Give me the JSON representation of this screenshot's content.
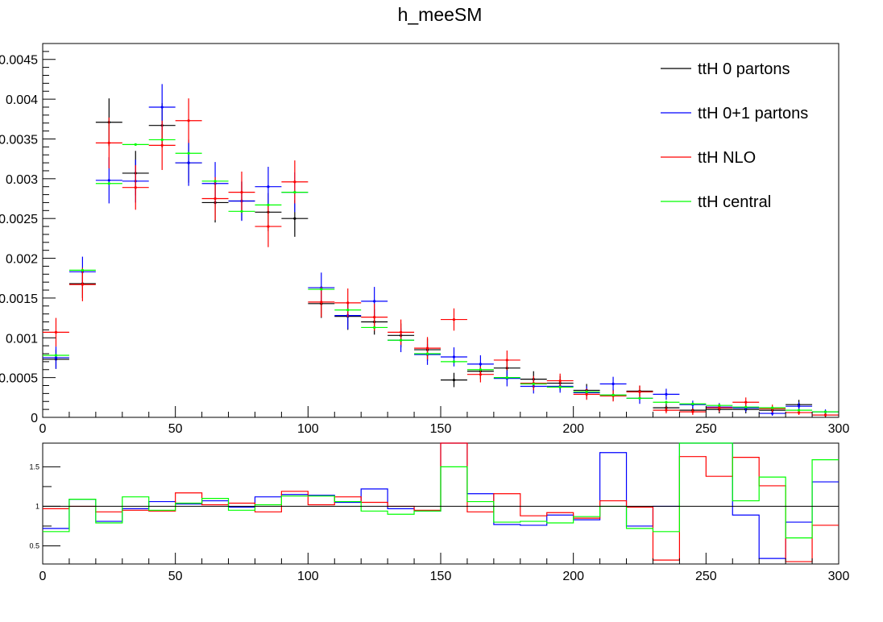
{
  "chart_data": [
    {
      "type": "scatter",
      "title": "h_meeSM",
      "xlabel": "",
      "ylabel": "",
      "xlim": [
        0,
        300
      ],
      "ylim": [
        0,
        0.0047
      ],
      "bin_width": 10,
      "x": [
        5,
        15,
        25,
        35,
        45,
        55,
        65,
        75,
        85,
        95,
        105,
        115,
        125,
        135,
        145,
        155,
        165,
        175,
        185,
        195,
        205,
        215,
        225,
        235,
        245,
        255,
        265,
        275,
        285,
        295
      ],
      "x_ticks": [
        "0",
        "50",
        "100",
        "150",
        "200",
        "250",
        "300"
      ],
      "y_ticks": [
        "0",
        "0.0005",
        "0.001",
        "0.0015",
        "0.002",
        "0.0025",
        "0.003",
        "0.0035",
        "0.004",
        "0.0045"
      ],
      "legend_position": "top-right",
      "series": [
        {
          "name": "ttH 0 partons",
          "color": "#000000",
          "values": [
            0.00073,
            0.00168,
            0.00371,
            0.00307,
            0.00367,
            0.0032,
            0.0027,
            0.00272,
            0.00258,
            0.0025,
            0.00143,
            0.00127,
            0.0012,
            0.00103,
            0.00085,
            0.00047,
            0.00058,
            0.00062,
            0.00048,
            0.00043,
            0.00034,
            0.00028,
            0.00033,
            0.00012,
            9e-05,
            0.0001,
            0.0001,
            9e-05,
            0.00016,
            3e-05
          ],
          "errors": [
            0.00012,
            0.00018,
            0.0003,
            0.00028,
            0.00028,
            0.00025,
            0.00025,
            0.00024,
            0.00024,
            0.00023,
            0.00018,
            0.00017,
            0.00016,
            0.00015,
            0.00014,
            9e-05,
            0.0001,
            0.00011,
            0.0001,
            9e-05,
            8e-05,
            7e-05,
            7e-05,
            5e-05,
            4e-05,
            5e-05,
            5e-05,
            4e-05,
            6e-05,
            3e-05
          ]
        },
        {
          "name": "ttH 0+1 partons",
          "color": "#0000ff",
          "values": [
            0.00075,
            0.00183,
            0.00298,
            0.00297,
            0.0039,
            0.0032,
            0.00294,
            0.00272,
            0.0029,
            0.00283,
            0.00163,
            0.00128,
            0.00146,
            0.00097,
            0.00079,
            0.00076,
            0.00067,
            0.00049,
            0.00039,
            0.00039,
            0.00031,
            0.00042,
            0.00024,
            0.00029,
            0.00016,
            0.00013,
            0.00012,
            5e-05,
            0.00014,
            7e-05
          ],
          "errors": [
            0.00014,
            0.00019,
            0.00029,
            0.00027,
            0.00029,
            0.00029,
            0.00027,
            0.00025,
            0.00025,
            0.00025,
            0.00019,
            0.00017,
            0.00018,
            0.00015,
            0.00013,
            0.00012,
            0.00011,
            0.0001,
            9e-05,
            8e-05,
            8e-05,
            9e-05,
            7e-05,
            7e-05,
            5e-05,
            5e-05,
            5e-05,
            3e-05,
            5e-05,
            3e-05
          ]
        },
        {
          "name": "ttH NLO",
          "color": "#ff0000",
          "values": [
            0.00107,
            0.00167,
            0.00345,
            0.00289,
            0.00342,
            0.00373,
            0.00275,
            0.00283,
            0.0024,
            0.00296,
            0.00145,
            0.00144,
            0.00126,
            0.00107,
            0.00087,
            0.00123,
            0.00054,
            0.00072,
            0.00043,
            0.00046,
            0.00029,
            0.00027,
            0.00032,
            9e-05,
            7e-05,
            0.00012,
            0.00019,
            0.00011,
            6e-05,
            3e-05
          ],
          "errors": [
            0.00018,
            0.00021,
            0.00032,
            0.00028,
            0.00031,
            0.00028,
            0.00027,
            0.00026,
            0.00026,
            0.00027,
            0.00019,
            0.00018,
            0.00017,
            0.00016,
            0.00014,
            0.00014,
            0.0001,
            0.00012,
            9e-05,
            9e-05,
            7e-05,
            7e-05,
            8e-05,
            4e-05,
            4e-05,
            5e-05,
            6e-05,
            5e-05,
            3e-05,
            2e-05
          ]
        },
        {
          "name": "ttH central",
          "color": "#00ff00",
          "values": [
            0.00078,
            0.00185,
            0.00294,
            0.00343,
            0.00349,
            0.00332,
            0.00297,
            0.00259,
            0.00267,
            0.00283,
            0.00161,
            0.00135,
            0.00113,
            0.00097,
            0.0008,
            0.0007,
            0.0006,
            0.0005,
            0.00042,
            0.00038,
            0.00032,
            0.00028,
            0.00024,
            0.00019,
            0.00017,
            0.00015,
            0.00013,
            0.00012,
            9e-05,
            7e-05
          ],
          "errors": [
            0,
            0,
            0,
            0,
            0,
            0,
            0,
            0,
            0,
            0,
            0,
            0,
            0,
            0,
            0,
            0,
            0,
            0,
            0,
            0,
            0,
            0,
            0,
            0,
            0,
            0,
            0,
            0,
            0,
            0
          ]
        }
      ]
    },
    {
      "type": "line",
      "title": "",
      "xlabel": "",
      "ylabel": "",
      "xlim": [
        0,
        300
      ],
      "ylim": [
        0.27,
        1.8
      ],
      "bin_width": 10,
      "reference_line": 1,
      "x_ticks": [
        "0",
        "50",
        "100",
        "150",
        "200",
        "250",
        "300"
      ],
      "y_ticks": [
        "0.5",
        "1",
        "1.5"
      ],
      "series": [
        {
          "name": "ttH 0+1 partons",
          "color": "#0000ff",
          "values": [
            0.72,
            1.09,
            0.81,
            0.97,
            1.06,
            1.03,
            1.07,
            0.99,
            1.12,
            1.15,
            1.14,
            1.05,
            1.22,
            0.97,
            0.94,
            1.93,
            1.16,
            0.77,
            0.76,
            0.89,
            0.83,
            1.68,
            0.75,
            1.0,
            1.8,
            1.8,
            0.89,
            0.34,
            0.8,
            1.31
          ]
        },
        {
          "name": "ttH NLO",
          "color": "#ff0000",
          "values": [
            0.97,
            1.0,
            0.93,
            0.95,
            0.94,
            1.17,
            1.02,
            1.04,
            0.93,
            1.19,
            1.02,
            1.12,
            1.05,
            1.0,
            0.95,
            2.1,
            0.93,
            1.16,
            0.88,
            0.92,
            0.85,
            1.07,
            0.99,
            0.32,
            1.63,
            1.38,
            1.62,
            1.26,
            0.3,
            0.76
          ]
        },
        {
          "name": "ttH central",
          "color": "#00ff00",
          "values": [
            0.68,
            1.09,
            0.79,
            1.12,
            0.95,
            1.04,
            1.1,
            0.95,
            1.02,
            1.13,
            1.13,
            1.06,
            0.94,
            0.9,
            0.94,
            1.5,
            1.06,
            0.8,
            0.81,
            0.79,
            0.87,
            1.0,
            0.72,
            0.68,
            1.8,
            1.8,
            1.07,
            1.37,
            0.6,
            1.59
          ]
        }
      ]
    }
  ]
}
